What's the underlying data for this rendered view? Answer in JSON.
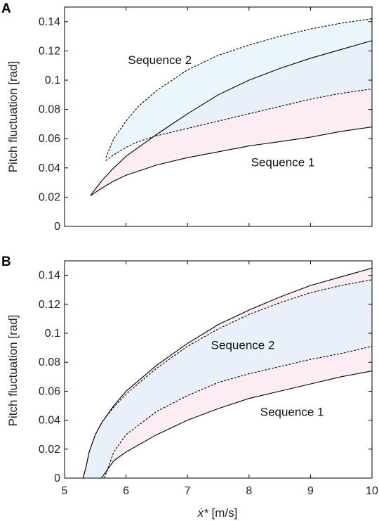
{
  "figure": {
    "xlabel_symbol": "ẋ*",
    "xlabel_units": " [m/s]"
  },
  "colors": {
    "sequence1_fill": "#fbe6f0",
    "sequence2_fill": "#e3f2fb",
    "overlap_fill": "#e6e6f4",
    "line": "#000000"
  },
  "chart_data": [
    {
      "type": "area",
      "panel_label": "A",
      "ylabel": "Pitch fluctuation [rad]",
      "xlim": [
        5,
        10
      ],
      "ylim": [
        0,
        0.15
      ],
      "xticks": [
        5,
        6,
        7,
        8,
        9,
        10
      ],
      "xtick_labels": [
        "",
        "",
        "",
        "",
        "",
        ""
      ],
      "yticks": [
        0,
        0.02,
        0.04,
        0.06,
        0.08,
        0.1,
        0.12,
        0.14
      ],
      "ytick_labels": [
        "0",
        "0.02",
        "0.04",
        "0.06",
        "0.08",
        "0.1",
        "0.12",
        "0.14"
      ],
      "grid": false,
      "series": [
        {
          "name": "Sequence 1",
          "line_style": "solid",
          "x": [
            5.42,
            5.6,
            5.8,
            6.0,
            6.5,
            7.0,
            7.5,
            8.0,
            8.5,
            9.0,
            9.5,
            10.0
          ],
          "lower": [
            0.021,
            0.026,
            0.031,
            0.035,
            0.042,
            0.047,
            0.051,
            0.055,
            0.058,
            0.061,
            0.065,
            0.068
          ],
          "upper": [
            0.021,
            0.031,
            0.04,
            0.048,
            0.063,
            0.077,
            0.09,
            0.1,
            0.108,
            0.115,
            0.121,
            0.127
          ]
        },
        {
          "name": "Sequence 2",
          "line_style": "dashed",
          "x": [
            5.67,
            5.8,
            6.0,
            6.2,
            6.5,
            7.0,
            7.5,
            8.0,
            8.5,
            9.0,
            9.5,
            10.0
          ],
          "lower": [
            0.045,
            0.049,
            0.054,
            0.058,
            0.062,
            0.067,
            0.072,
            0.077,
            0.082,
            0.087,
            0.091,
            0.094
          ],
          "upper": [
            0.047,
            0.06,
            0.072,
            0.082,
            0.093,
            0.107,
            0.117,
            0.124,
            0.13,
            0.135,
            0.139,
            0.142
          ]
        }
      ],
      "annotations": [
        {
          "text": "Sequence 2",
          "x": 6.55,
          "y": 0.111,
          "anchor": "middle"
        },
        {
          "text": "Sequence 1",
          "x": 8.55,
          "y": 0.041,
          "anchor": "middle"
        }
      ]
    },
    {
      "type": "area",
      "panel_label": "B",
      "ylabel": "Pitch fluctuation [rad]",
      "xlim": [
        5,
        10
      ],
      "ylim": [
        0,
        0.15
      ],
      "xticks": [
        5,
        6,
        7,
        8,
        9,
        10
      ],
      "xtick_labels": [
        "5",
        "6",
        "7",
        "8",
        "9",
        "10"
      ],
      "yticks": [
        0,
        0.02,
        0.04,
        0.06,
        0.08,
        0.1,
        0.12,
        0.14
      ],
      "ytick_labels": [
        "0",
        "0.02",
        "0.04",
        "0.06",
        "0.08",
        "0.1",
        "0.12",
        "0.14"
      ],
      "grid": false,
      "series": [
        {
          "name": "Sequence 1",
          "line_style": "solid",
          "x": [
            5.3,
            5.35,
            5.4,
            5.5,
            5.6,
            5.8,
            6.0,
            6.5,
            7.0,
            7.5,
            8.0,
            8.5,
            9.0,
            9.5,
            10.0
          ],
          "lower": [
            null,
            null,
            null,
            null,
            0.0,
            0.012,
            0.018,
            0.03,
            0.04,
            0.048,
            0.055,
            0.06,
            0.065,
            0.07,
            0.074
          ],
          "upper": [
            0.0,
            0.008,
            0.018,
            0.03,
            0.038,
            0.05,
            0.06,
            0.078,
            0.093,
            0.106,
            0.116,
            0.125,
            0.133,
            0.139,
            0.145
          ]
        },
        {
          "name": "Sequence 2",
          "line_style": "dashed",
          "x": [
            5.3,
            5.35,
            5.4,
            5.5,
            5.6,
            5.65,
            5.8,
            6.0,
            6.5,
            7.0,
            7.5,
            8.0,
            8.5,
            9.0,
            9.5,
            10.0
          ],
          "lower": [
            null,
            null,
            null,
            null,
            null,
            0.0,
            0.018,
            0.03,
            0.046,
            0.057,
            0.066,
            0.072,
            0.077,
            0.082,
            0.086,
            0.091
          ],
          "upper": [
            0.0,
            0.008,
            0.018,
            0.03,
            0.038,
            0.041,
            0.049,
            0.058,
            0.076,
            0.091,
            0.103,
            0.113,
            0.121,
            0.128,
            0.133,
            0.137
          ]
        }
      ],
      "annotations": [
        {
          "text": "Sequence 2",
          "x": 7.9,
          "y": 0.089,
          "anchor": "middle"
        },
        {
          "text": "Sequence 1",
          "x": 8.7,
          "y": 0.043,
          "anchor": "middle"
        }
      ]
    }
  ]
}
